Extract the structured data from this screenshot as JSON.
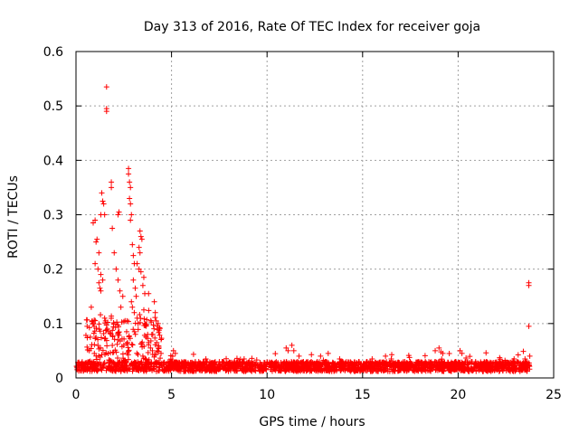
{
  "chart_data": {
    "type": "scatter",
    "title": "Day 313 of 2016, Rate Of TEC Index for receiver goja",
    "xlabel": "GPS time / hours",
    "ylabel": "ROTI / TECUs",
    "xlim": [
      0,
      25
    ],
    "ylim": [
      0,
      0.6
    ],
    "xticks": [
      0,
      5,
      10,
      15,
      20,
      25
    ],
    "yticks": [
      0,
      0.1,
      0.2,
      0.3,
      0.4,
      0.5,
      0.6
    ],
    "xtick_labels": [
      "0",
      "5",
      "10",
      "15",
      "20",
      "25"
    ],
    "ytick_labels": [
      "0",
      "0.1",
      "0.2",
      "0.3",
      "0.4",
      "0.5",
      "0.6"
    ],
    "grid": true,
    "marker": "+",
    "series": [
      {
        "name": "ROTI",
        "color": "#ff0000",
        "points": [
          [
            0.9,
            0.285
          ],
          [
            1.0,
            0.29
          ],
          [
            1.05,
            0.25
          ],
          [
            1.1,
            0.255
          ],
          [
            1.2,
            0.23
          ],
          [
            1.3,
            0.3
          ],
          [
            1.35,
            0.34
          ],
          [
            1.4,
            0.325
          ],
          [
            1.45,
            0.32
          ],
          [
            1.5,
            0.3
          ],
          [
            1.6,
            0.535
          ],
          [
            1.6,
            0.495
          ],
          [
            1.6,
            0.49
          ],
          [
            1.85,
            0.36
          ],
          [
            1.85,
            0.35
          ],
          [
            1.9,
            0.275
          ],
          [
            2.0,
            0.23
          ],
          [
            2.2,
            0.3
          ],
          [
            2.25,
            0.305
          ],
          [
            2.1,
            0.2
          ],
          [
            2.2,
            0.18
          ],
          [
            2.75,
            0.385
          ],
          [
            2.75,
            0.375
          ],
          [
            2.8,
            0.36
          ],
          [
            2.85,
            0.35
          ],
          [
            2.8,
            0.33
          ],
          [
            2.85,
            0.32
          ],
          [
            2.9,
            0.3
          ],
          [
            2.85,
            0.29
          ],
          [
            3.35,
            0.27
          ],
          [
            3.4,
            0.26
          ],
          [
            3.45,
            0.255
          ],
          [
            3.3,
            0.24
          ],
          [
            3.35,
            0.23
          ],
          [
            3.2,
            0.21
          ],
          [
            3.3,
            0.2
          ],
          [
            3.4,
            0.195
          ],
          [
            3.55,
            0.185
          ],
          [
            3.5,
            0.17
          ],
          [
            3.6,
            0.155
          ],
          [
            3.8,
            0.155
          ],
          [
            2.95,
            0.245
          ],
          [
            3.0,
            0.225
          ],
          [
            3.05,
            0.21
          ],
          [
            1.0,
            0.21
          ],
          [
            1.15,
            0.2
          ],
          [
            1.3,
            0.19
          ],
          [
            1.4,
            0.18
          ],
          [
            1.2,
            0.175
          ],
          [
            1.25,
            0.165
          ],
          [
            1.3,
            0.16
          ],
          [
            2.3,
            0.16
          ],
          [
            2.45,
            0.15
          ],
          [
            2.35,
            0.13
          ],
          [
            0.8,
            0.13
          ],
          [
            0.85,
            0.105
          ],
          [
            0.9,
            0.1
          ],
          [
            0.95,
            0.095
          ],
          [
            1.5,
            0.11
          ],
          [
            1.55,
            0.105
          ],
          [
            1.65,
            0.09
          ],
          [
            1.7,
            0.085
          ],
          [
            0.75,
            0.075
          ],
          [
            0.7,
            0.05
          ],
          [
            3.0,
            0.18
          ],
          [
            3.1,
            0.165
          ],
          [
            3.15,
            0.15
          ],
          [
            2.9,
            0.14
          ],
          [
            2.95,
            0.13
          ],
          [
            3.05,
            0.12
          ],
          [
            3.2,
            0.11
          ],
          [
            3.25,
            0.1
          ],
          [
            4.1,
            0.14
          ],
          [
            4.15,
            0.12
          ],
          [
            4.2,
            0.105
          ],
          [
            4.25,
            0.095
          ],
          [
            4.3,
            0.1
          ],
          [
            3.55,
            0.125
          ],
          [
            3.6,
            0.1
          ],
          [
            2.65,
            0.085
          ],
          [
            2.7,
            0.065
          ],
          [
            3.75,
            0.08
          ],
          [
            3.8,
            0.065
          ],
          [
            3.9,
            0.055
          ],
          [
            4.0,
            0.05
          ],
          [
            3.5,
            0.04
          ],
          [
            2.2,
            0.07
          ],
          [
            2.5,
            0.06
          ],
          [
            5.1,
            0.05
          ],
          [
            5.2,
            0.045
          ],
          [
            6.8,
            0.035
          ],
          [
            7.5,
            0.03
          ],
          [
            8.8,
            0.035
          ],
          [
            11.0,
            0.055
          ],
          [
            11.1,
            0.05
          ],
          [
            11.3,
            0.06
          ],
          [
            11.4,
            0.05
          ],
          [
            12.8,
            0.04
          ],
          [
            13.2,
            0.045
          ],
          [
            13.8,
            0.035
          ],
          [
            15.5,
            0.035
          ],
          [
            16.2,
            0.04
          ],
          [
            16.5,
            0.035
          ],
          [
            17.2,
            0.03
          ],
          [
            18.8,
            0.05
          ],
          [
            19.0,
            0.055
          ],
          [
            19.1,
            0.048
          ],
          [
            19.2,
            0.045
          ],
          [
            20.1,
            0.05
          ],
          [
            20.2,
            0.045
          ],
          [
            21.5,
            0.03
          ],
          [
            22.3,
            0.03
          ],
          [
            23.1,
            0.03
          ],
          [
            23.5,
            0.035
          ],
          [
            23.7,
            0.175
          ],
          [
            23.7,
            0.17
          ],
          [
            23.7,
            0.095
          ],
          [
            23.75,
            0.04
          ]
        ]
      }
    ]
  }
}
